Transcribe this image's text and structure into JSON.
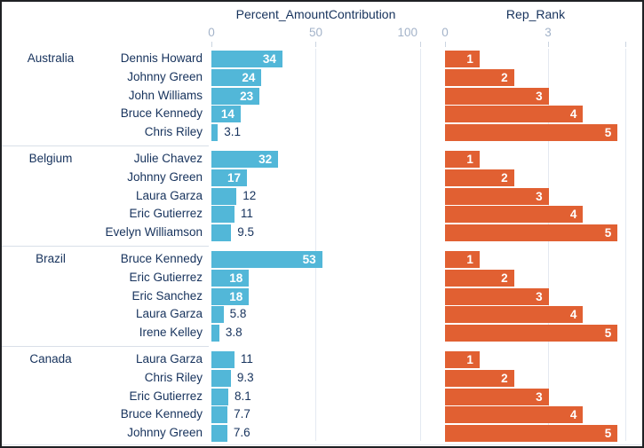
{
  "panel": {
    "percent_title": "Percent_AmountContribution",
    "rank_title": "Rep_Rank"
  },
  "percent_axis": {
    "ticks": [
      "0",
      "50",
      "100"
    ]
  },
  "rank_axis": {
    "ticks": [
      "0",
      "3"
    ]
  },
  "colors": {
    "percent_bar": "#52B7D8",
    "rank_bar": "#E16032",
    "text_dark": "#16325C",
    "axis_text": "#A3B3C9",
    "gridline": "#E4E9F1",
    "divider": "#D9DFE8"
  },
  "chart_data": {
    "type": "bar",
    "orientation": "horizontal",
    "title": "",
    "facet_measures": [
      "Percent_AmountContribution",
      "Rep_Rank"
    ],
    "legend": "none",
    "grid": "vertical-gridlines",
    "axes": {
      "percent": {
        "label": "Percent_AmountContribution",
        "ticks": [
          0,
          50,
          100
        ],
        "range": [
          0,
          100
        ]
      },
      "rank": {
        "label": "Rep_Rank",
        "ticks": [
          0,
          3
        ],
        "range": [
          0,
          5.25
        ]
      }
    },
    "groups": [
      {
        "country": "Australia",
        "rows": [
          {
            "rep": "Dennis Howard",
            "percent": 34,
            "percent_label": "34",
            "rank": 1
          },
          {
            "rep": "Johnny Green",
            "percent": 24,
            "percent_label": "24",
            "rank": 2
          },
          {
            "rep": "John Williams",
            "percent": 23,
            "percent_label": "23",
            "rank": 3
          },
          {
            "rep": "Bruce Kennedy",
            "percent": 14,
            "percent_label": "14",
            "rank": 4
          },
          {
            "rep": "Chris Riley",
            "percent": 3.1,
            "percent_label": "3.1",
            "rank": 5
          }
        ]
      },
      {
        "country": "Belgium",
        "rows": [
          {
            "rep": "Julie Chavez",
            "percent": 32,
            "percent_label": "32",
            "rank": 1
          },
          {
            "rep": "Johnny Green",
            "percent": 17,
            "percent_label": "17",
            "rank": 2
          },
          {
            "rep": "Laura Garza",
            "percent": 12,
            "percent_label": "12",
            "rank": 3
          },
          {
            "rep": "Eric Gutierrez",
            "percent": 11,
            "percent_label": "11",
            "rank": 4
          },
          {
            "rep": "Evelyn Williamson",
            "percent": 9.5,
            "percent_label": "9.5",
            "rank": 5
          }
        ]
      },
      {
        "country": "Brazil",
        "rows": [
          {
            "rep": "Bruce Kennedy",
            "percent": 53,
            "percent_label": "53",
            "rank": 1
          },
          {
            "rep": "Eric Gutierrez",
            "percent": 18,
            "percent_label": "18",
            "rank": 2
          },
          {
            "rep": "Eric Sanchez",
            "percent": 18,
            "percent_label": "18",
            "rank": 3
          },
          {
            "rep": "Laura Garza",
            "percent": 5.8,
            "percent_label": "5.8",
            "rank": 4
          },
          {
            "rep": "Irene Kelley",
            "percent": 3.8,
            "percent_label": "3.8",
            "rank": 5
          }
        ]
      },
      {
        "country": "Canada",
        "rows": [
          {
            "rep": "Laura Garza",
            "percent": 11,
            "percent_label": "11",
            "rank": 1
          },
          {
            "rep": "Chris Riley",
            "percent": 9.3,
            "percent_label": "9.3",
            "rank": 2
          },
          {
            "rep": "Eric Gutierrez",
            "percent": 8.1,
            "percent_label": "8.1",
            "rank": 3
          },
          {
            "rep": "Bruce Kennedy",
            "percent": 7.7,
            "percent_label": "7.7",
            "rank": 4
          },
          {
            "rep": "Johnny Green",
            "percent": 7.6,
            "percent_label": "7.6",
            "rank": 5
          }
        ]
      }
    ]
  }
}
